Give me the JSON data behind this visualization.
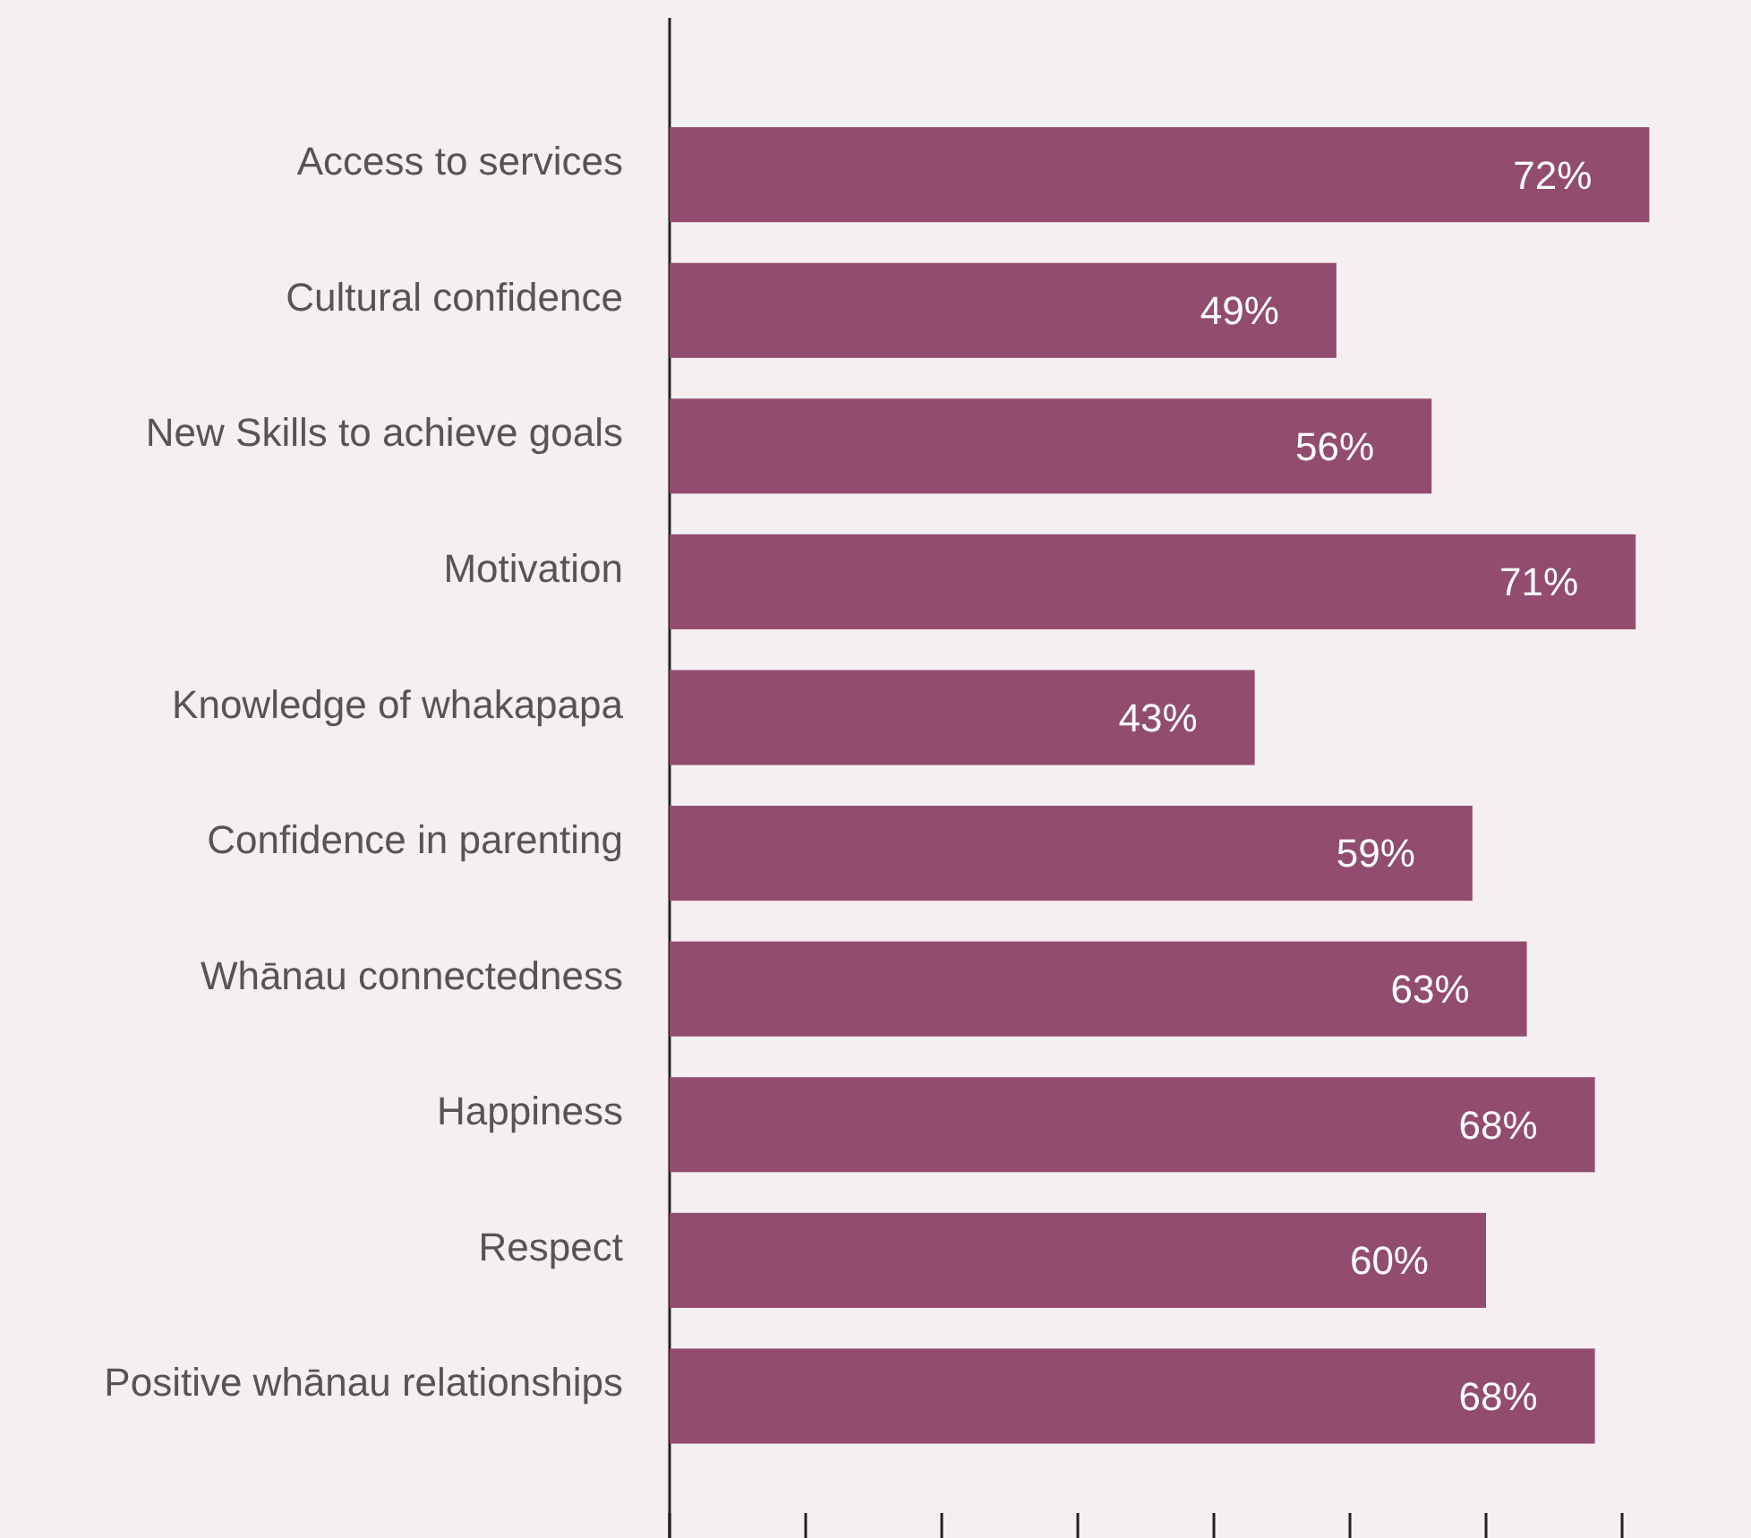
{
  "chart_data": {
    "type": "bar",
    "orientation": "horizontal",
    "categories": [
      "Access to services",
      "Cultural confidence",
      "New Skills to achieve goals",
      "Motivation",
      "Knowledge of whakapapa",
      "Confidence in parenting",
      "Whānau connectedness",
      "Happiness",
      "Respect",
      "Positive whānau relationships"
    ],
    "values": [
      72,
      49,
      56,
      71,
      43,
      59,
      63,
      68,
      60,
      68
    ],
    "value_labels": [
      "72%",
      "49%",
      "56%",
      "71%",
      "43%",
      "59%",
      "63%",
      "68%",
      "60%",
      "68%"
    ],
    "color": "#924c6f",
    "xticks": [
      {
        "value": 0,
        "label": null
      },
      {
        "value": 10,
        "label": null
      },
      {
        "value": 20,
        "label": null
      },
      {
        "value": 30,
        "label": null
      },
      {
        "value": 40,
        "label": null
      },
      {
        "value": 50,
        "label": null
      },
      {
        "value": 60,
        "label": null
      },
      {
        "value": 70,
        "label": null
      }
    ],
    "tick_labels": "y",
    "grid": false
  }
}
